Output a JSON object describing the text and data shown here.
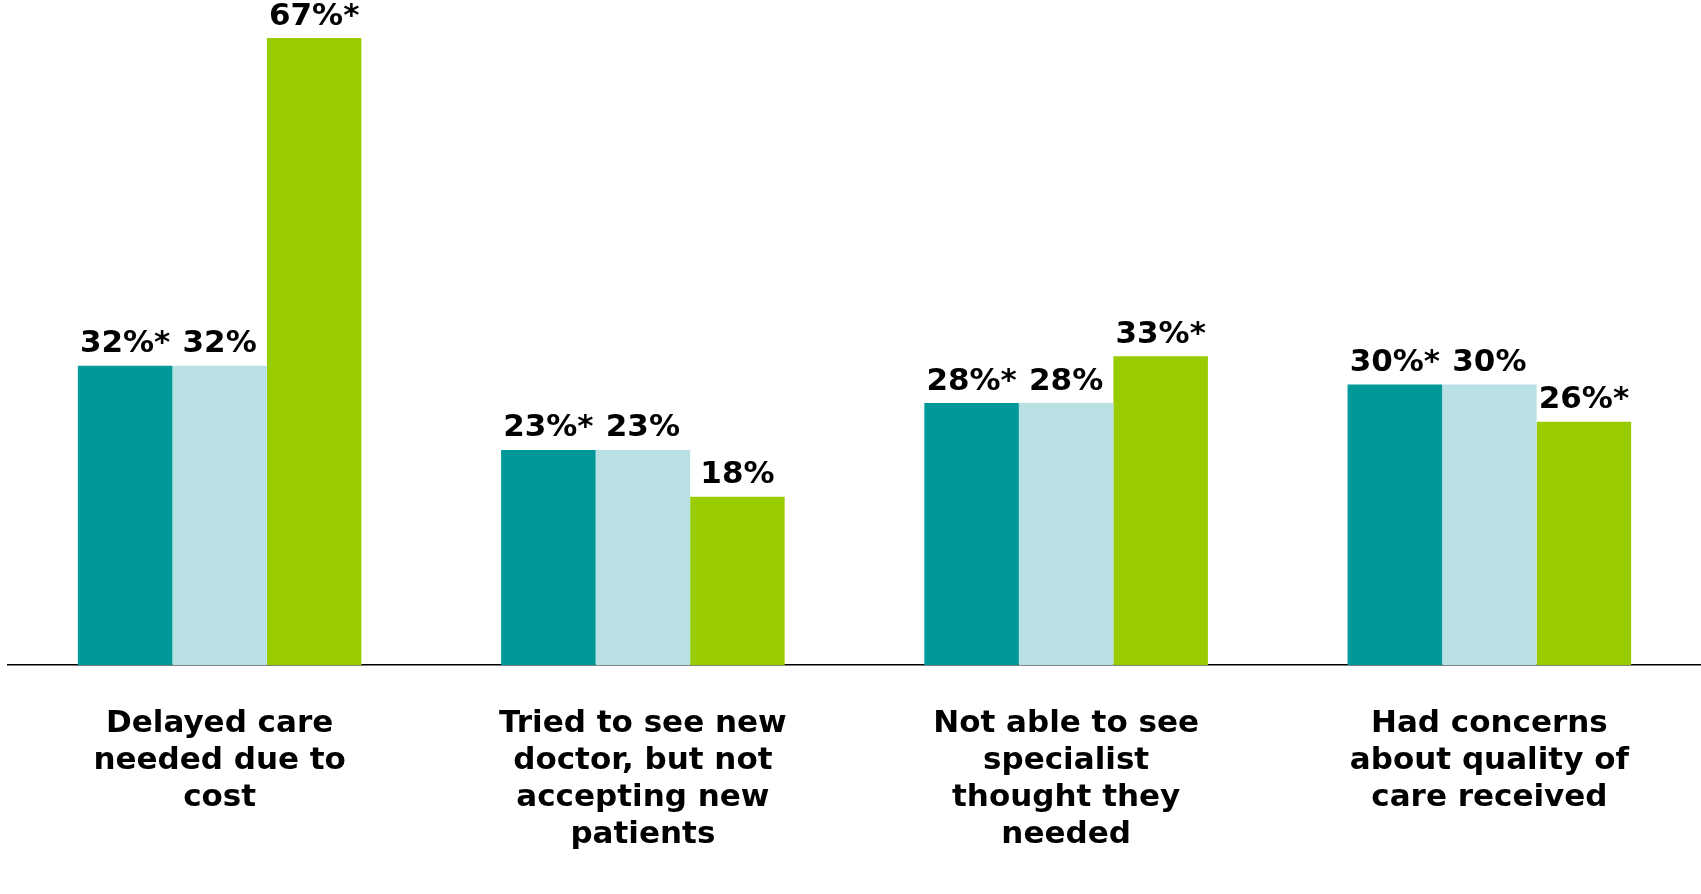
{
  "chart_data": {
    "type": "bar",
    "categories": [
      "Delayed care needed due to cost",
      "Tried to see new doctor, but not accepting new patients",
      "Not able to see specialist thought they needed",
      "Had concerns about quality of care received"
    ],
    "series": [
      {
        "color": "#009999",
        "values": [
          32,
          23,
          28,
          30
        ],
        "value_labels": [
          "32%*",
          "23%*",
          "28%*",
          "30%*"
        ]
      },
      {
        "color": "#b9e0e3",
        "values": [
          32,
          23,
          28,
          30
        ],
        "value_labels": [
          "32%",
          "23%",
          "28%",
          "30%"
        ]
      },
      {
        "color": "#99cc00",
        "values": [
          67,
          18,
          33,
          26
        ],
        "value_labels": [
          "67%*",
          "18%",
          "33%*",
          "26%*"
        ]
      }
    ],
    "tick_labels": "x",
    "grid": false,
    "legend": false
  }
}
